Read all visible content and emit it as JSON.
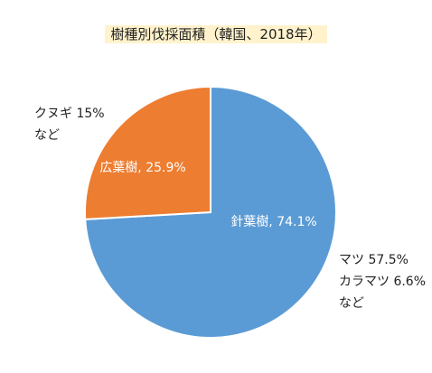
{
  "chart_data": {
    "type": "pie",
    "title": "樹種別伐採面積（韓国、2018年）",
    "slices": [
      {
        "label": "針葉樹",
        "value": 74.1,
        "data_label": "針葉樹, 74.1%",
        "color": "#5b9bd5"
      },
      {
        "label": "広葉樹",
        "value": 25.9,
        "data_label": "広葉樹, 25.9%",
        "color": "#ed7d31"
      }
    ],
    "annotations": {
      "broadleaf": [
        "クヌギ 15%",
        "など"
      ],
      "conifer": [
        "マツ 57.5%",
        "カラマツ 6.6%",
        "など"
      ]
    }
  }
}
